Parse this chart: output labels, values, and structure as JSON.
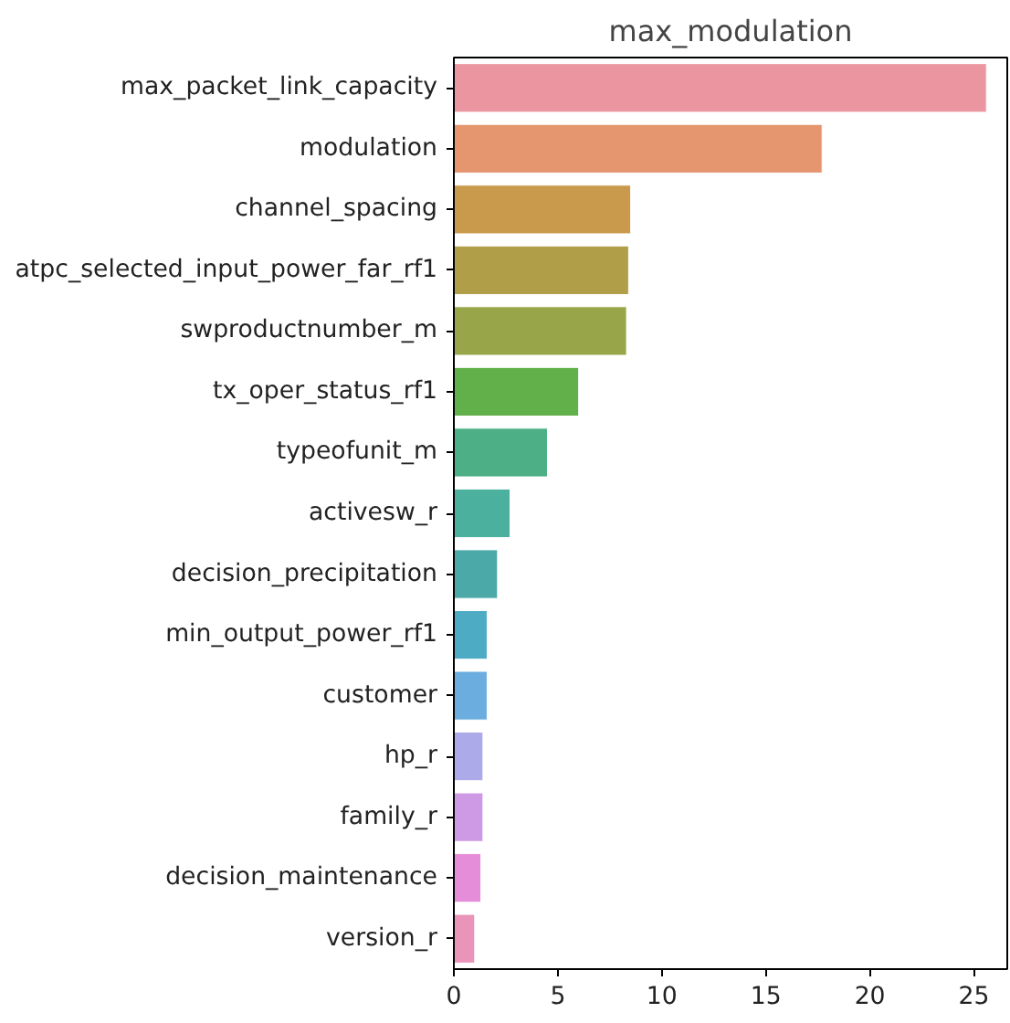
{
  "chart_data": {
    "type": "bar",
    "orientation": "horizontal",
    "title": "max_modulation",
    "categories": [
      "max_packet_link_capacity",
      "modulation",
      "channel_spacing",
      "atpc_selected_input_power_far_rf1",
      "swproductnumber_m",
      "tx_oper_status_rf1",
      "typeofunit_m",
      "activesw_r",
      "decision_precipitation",
      "min_output_power_rf1",
      "customer",
      "hp_r",
      "family_r",
      "decision_maintenance",
      "version_r"
    ],
    "values": [
      25.6,
      17.7,
      8.5,
      8.4,
      8.3,
      6.0,
      4.5,
      2.7,
      2.1,
      1.6,
      1.6,
      1.4,
      1.4,
      1.3,
      1.0
    ],
    "colors": [
      "#eb95a0",
      "#e5966f",
      "#c99a4c",
      "#b09e48",
      "#98a548",
      "#62b04a",
      "#4caf85",
      "#4cb09e",
      "#4ba9a8",
      "#4eabc4",
      "#6badde",
      "#acaae8",
      "#cf9ae5",
      "#e58dd9",
      "#e994b8"
    ],
    "xlim": [
      0,
      26.6
    ],
    "xticks": [
      0,
      5,
      10,
      15,
      20,
      25
    ],
    "grid": false
  }
}
